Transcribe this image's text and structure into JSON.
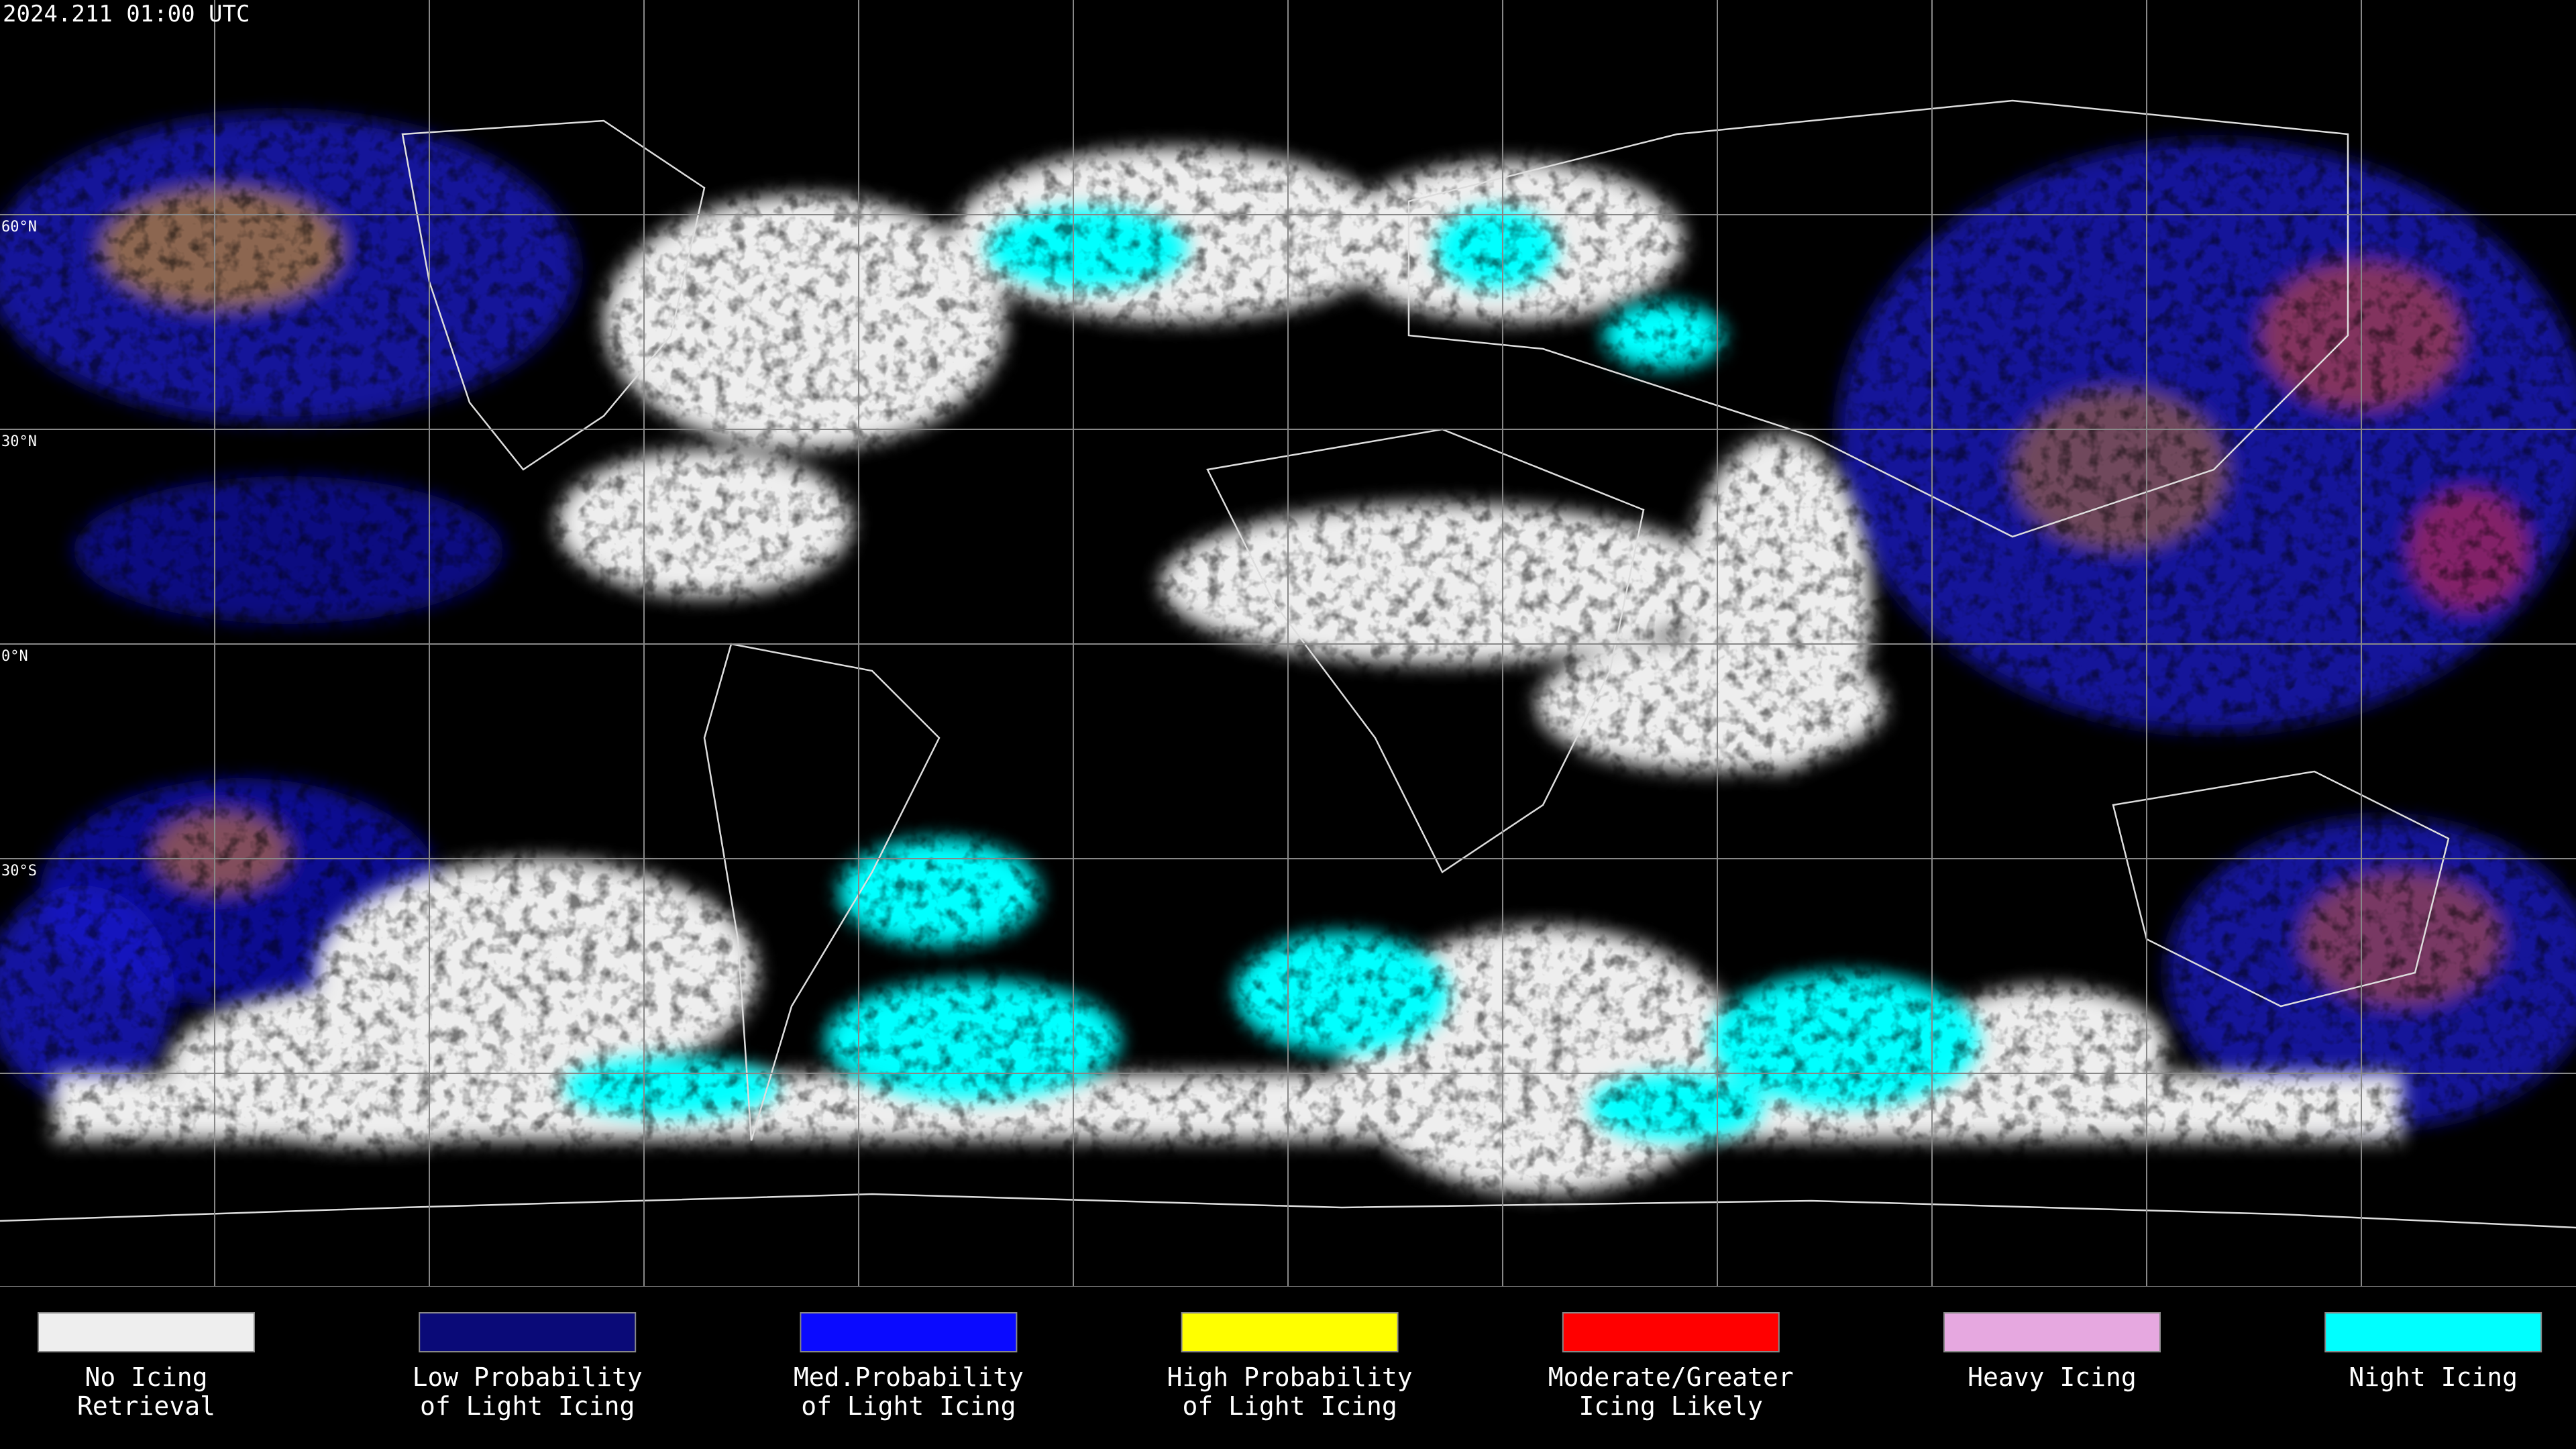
{
  "header": {
    "timestamp": "2024.211 01:00 UTC"
  },
  "map": {
    "latitude_labels": [
      "60°N",
      "30°N",
      "0°N",
      "30°S"
    ]
  },
  "legend": {
    "items": [
      {
        "lines": [
          "No Icing",
          "Retrieval"
        ],
        "color": "#eeeeee"
      },
      {
        "lines": [
          "Low Probability",
          "of Light Icing"
        ],
        "color": "#0a0a78"
      },
      {
        "lines": [
          "Med.Probability",
          "of Light Icing"
        ],
        "color": "#0a0aff"
      },
      {
        "lines": [
          "High Probability",
          "of Light Icing"
        ],
        "color": "#ffff00"
      },
      {
        "lines": [
          "Moderate/Greater",
          "Icing Likely"
        ],
        "color": "#ff0000"
      },
      {
        "lines": [
          "Heavy Icing"
        ],
        "color": "#e6a8e0"
      },
      {
        "lines": [
          "Night Icing"
        ],
        "color": "#00ffff"
      }
    ]
  }
}
